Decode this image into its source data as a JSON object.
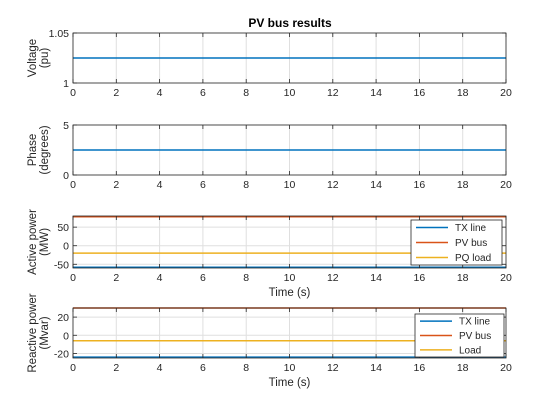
{
  "figure": {
    "title": "PV bus results"
  },
  "colors": {
    "blue": "#0072BD",
    "orange": "#D95319",
    "yellow": "#EDB120",
    "grid": "#dfdfdf",
    "axis": "#262626"
  },
  "chart_data": [
    {
      "type": "line",
      "title": "PV bus results",
      "xlabel": "",
      "ylabel": [
        "Voltage",
        "(pu)"
      ],
      "xlim": [
        0,
        20
      ],
      "ylim": [
        1,
        1.05
      ],
      "xticks": [
        0,
        2,
        4,
        6,
        8,
        10,
        12,
        14,
        16,
        18,
        20
      ],
      "yticks": [
        1,
        1.05
      ],
      "ytick_labels": [
        "1",
        "1.05"
      ],
      "grid": true,
      "legend": null,
      "series": [
        {
          "color": "#0072BD",
          "x": [
            0,
            20
          ],
          "y": [
            1.025,
            1.025
          ]
        }
      ]
    },
    {
      "type": "line",
      "title": "",
      "xlabel": "",
      "ylabel": [
        "Phase",
        "(degrees)"
      ],
      "xlim": [
        0,
        20
      ],
      "ylim": [
        0,
        5
      ],
      "xticks": [
        0,
        2,
        4,
        6,
        8,
        10,
        12,
        14,
        16,
        18,
        20
      ],
      "yticks": [
        0,
        5
      ],
      "ytick_labels": [
        "0",
        "5"
      ],
      "grid": true,
      "legend": null,
      "series": [
        {
          "color": "#0072BD",
          "x": [
            0,
            20
          ],
          "y": [
            2.5,
            2.5
          ]
        }
      ]
    },
    {
      "type": "line",
      "title": "",
      "xlabel": "Time (s)",
      "ylabel": [
        "Active power",
        "(MW)"
      ],
      "xlim": [
        0,
        20
      ],
      "ylim": [
        -60,
        80
      ],
      "xticks": [
        0,
        2,
        4,
        6,
        8,
        10,
        12,
        14,
        16,
        18,
        20
      ],
      "yticks": [
        -50,
        0,
        50
      ],
      "ytick_labels": [
        "-50",
        "0",
        "50"
      ],
      "grid": true,
      "legend": {
        "location": "bottom-right"
      },
      "series": [
        {
          "name": "TX line",
          "color": "#0072BD",
          "x": [
            0,
            20
          ],
          "y": [
            -58,
            -58
          ]
        },
        {
          "name": "PV bus",
          "color": "#D95319",
          "x": [
            0,
            20
          ],
          "y": [
            78,
            78
          ]
        },
        {
          "name": "PQ load",
          "color": "#EDB120",
          "x": [
            0,
            20
          ],
          "y": [
            -20,
            -20
          ]
        }
      ]
    },
    {
      "type": "line",
      "title": "",
      "xlabel": "Time (s)",
      "ylabel": [
        "Reactive power",
        "(Mvar)"
      ],
      "xlim": [
        0,
        20
      ],
      "ylim": [
        -25,
        30
      ],
      "xticks": [
        0,
        2,
        4,
        6,
        8,
        10,
        12,
        14,
        16,
        18,
        20
      ],
      "yticks": [
        -20,
        0,
        20
      ],
      "ytick_labels": [
        "-20",
        "0",
        "20"
      ],
      "grid": true,
      "legend": {
        "location": "right"
      },
      "series": [
        {
          "name": "TX line",
          "color": "#0072BD",
          "x": [
            0,
            20
          ],
          "y": [
            -24,
            -24
          ]
        },
        {
          "name": "PV bus",
          "color": "#D95319",
          "x": [
            0,
            20
          ],
          "y": [
            30,
            30
          ]
        },
        {
          "name": "Load",
          "color": "#EDB120",
          "x": [
            0,
            20
          ],
          "y": [
            -6,
            -6
          ]
        }
      ]
    }
  ]
}
